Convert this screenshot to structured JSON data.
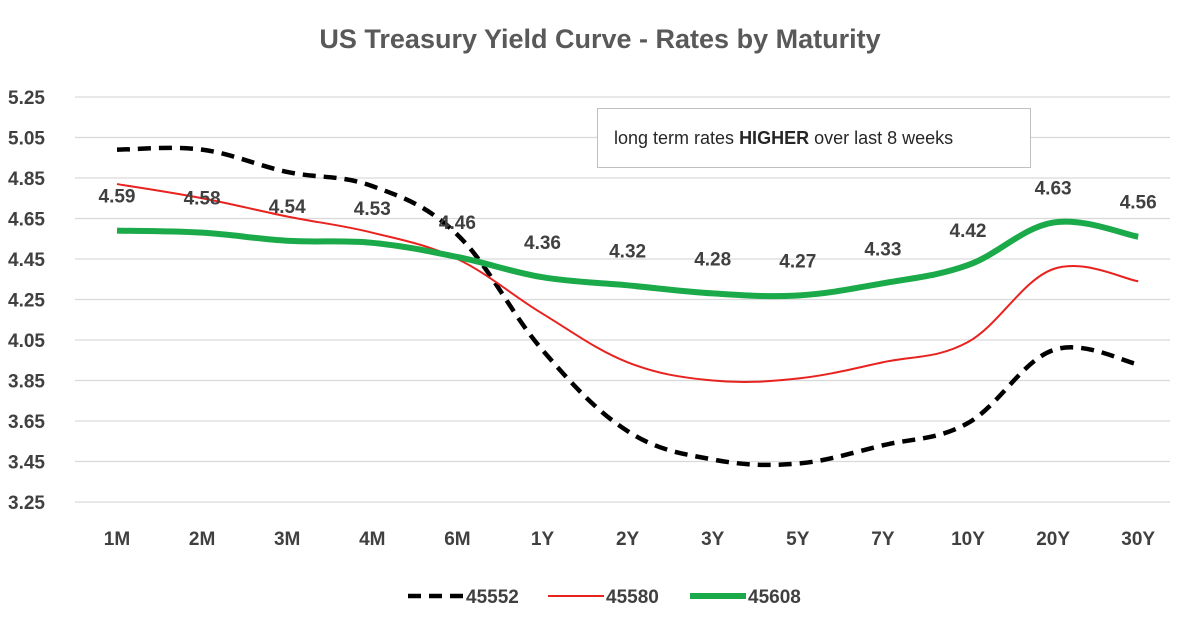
{
  "chart_data": {
    "type": "line",
    "title": "US Treasury Yield Curve - Rates by Maturity",
    "categories": [
      "1M",
      "2M",
      "3M",
      "4M",
      "6M",
      "1Y",
      "2Y",
      "3Y",
      "5Y",
      "7Y",
      "10Y",
      "20Y",
      "30Y"
    ],
    "yticks": [
      "5.25",
      "5.05",
      "4.85",
      "4.65",
      "4.45",
      "4.25",
      "4.05",
      "3.85",
      "3.65",
      "3.45",
      "3.25"
    ],
    "ylim": [
      3.25,
      5.25
    ],
    "grid": true,
    "legend_position": "bottom",
    "annotation": {
      "before": "long term rates ",
      "bold": "HIGHER",
      "after": " over last 8 weeks"
    },
    "series": [
      {
        "name": "45552",
        "color": "#000000",
        "style": "dashed",
        "values": [
          4.99,
          4.99,
          4.88,
          4.81,
          4.57,
          4.0,
          3.6,
          3.46,
          3.44,
          3.53,
          3.64,
          4.0,
          3.93
        ]
      },
      {
        "name": "45580",
        "color": "#e8231f",
        "style": "solid-thin",
        "values": [
          4.82,
          4.75,
          4.66,
          4.58,
          4.45,
          4.18,
          3.94,
          3.85,
          3.86,
          3.94,
          4.04,
          4.4,
          4.34
        ]
      },
      {
        "name": "45608",
        "color": "#1aaa4a",
        "style": "solid-thick",
        "values": [
          4.59,
          4.58,
          4.54,
          4.53,
          4.46,
          4.36,
          4.32,
          4.28,
          4.27,
          4.33,
          4.42,
          4.63,
          4.56
        ],
        "data_labels": [
          "4.59",
          "4.58",
          "4.54",
          "4.53",
          "4.46",
          "4.36",
          "4.32",
          "4.28",
          "4.27",
          "4.33",
          "4.42",
          "4.63",
          "4.56"
        ]
      }
    ]
  }
}
